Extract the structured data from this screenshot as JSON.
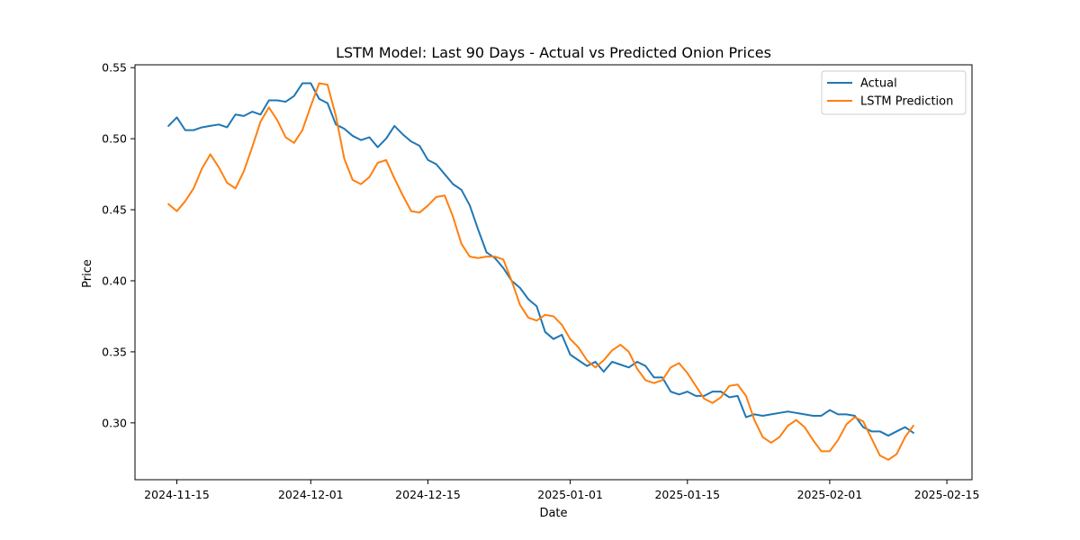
{
  "chart_data": {
    "type": "line",
    "title": "LSTM Model: Last 90 Days - Actual vs Predicted Onion Prices",
    "xlabel": "Date",
    "ylabel": "Price",
    "x_ticks": [
      "2024-11-15",
      "2024-12-01",
      "2024-12-15",
      "2025-01-01",
      "2025-01-15",
      "2025-02-01",
      "2025-02-15"
    ],
    "y_ticks": [
      "0.30",
      "0.35",
      "0.40",
      "0.45",
      "0.50",
      "0.55"
    ],
    "xlim": [
      "2024-11-10",
      "2025-02-18"
    ],
    "ylim": [
      0.26,
      0.552
    ],
    "grid": false,
    "legend_position": "upper right",
    "x": [
      "2024-11-14",
      "2024-11-15",
      "2024-11-16",
      "2024-11-17",
      "2024-11-18",
      "2024-11-19",
      "2024-11-20",
      "2024-11-21",
      "2024-11-22",
      "2024-11-23",
      "2024-11-24",
      "2024-11-25",
      "2024-11-26",
      "2024-11-27",
      "2024-11-28",
      "2024-11-29",
      "2024-11-30",
      "2024-12-01",
      "2024-12-02",
      "2024-12-03",
      "2024-12-04",
      "2024-12-05",
      "2024-12-06",
      "2024-12-07",
      "2024-12-08",
      "2024-12-09",
      "2024-12-10",
      "2024-12-11",
      "2024-12-12",
      "2024-12-13",
      "2024-12-14",
      "2024-12-15",
      "2024-12-16",
      "2024-12-17",
      "2024-12-18",
      "2024-12-19",
      "2024-12-20",
      "2024-12-21",
      "2024-12-22",
      "2024-12-23",
      "2024-12-24",
      "2024-12-25",
      "2024-12-26",
      "2024-12-27",
      "2024-12-28",
      "2024-12-29",
      "2024-12-30",
      "2024-12-31",
      "2025-01-01",
      "2025-01-02",
      "2025-01-03",
      "2025-01-04",
      "2025-01-05",
      "2025-01-06",
      "2025-01-07",
      "2025-01-08",
      "2025-01-09",
      "2025-01-10",
      "2025-01-11",
      "2025-01-12",
      "2025-01-13",
      "2025-01-14",
      "2025-01-15",
      "2025-01-16",
      "2025-01-17",
      "2025-01-18",
      "2025-01-19",
      "2025-01-20",
      "2025-01-21",
      "2025-01-22",
      "2025-01-23",
      "2025-01-24",
      "2025-01-25",
      "2025-01-26",
      "2025-01-27",
      "2025-01-28",
      "2025-01-29",
      "2025-01-30",
      "2025-01-31",
      "2025-02-01",
      "2025-02-02",
      "2025-02-03",
      "2025-02-04",
      "2025-02-05",
      "2025-02-06",
      "2025-02-07",
      "2025-02-08",
      "2025-02-09",
      "2025-02-10",
      "2025-02-11"
    ],
    "series": [
      {
        "name": "Actual",
        "color": "#1f77b4",
        "values": [
          0.509,
          0.515,
          0.506,
          0.506,
          0.508,
          0.509,
          0.51,
          0.508,
          0.517,
          0.516,
          0.519,
          0.517,
          0.527,
          0.527,
          0.526,
          0.53,
          0.539,
          0.539,
          0.528,
          0.525,
          0.51,
          0.507,
          0.502,
          0.499,
          0.501,
          0.494,
          0.5,
          0.509,
          0.503,
          0.498,
          0.495,
          0.485,
          0.482,
          0.475,
          0.468,
          0.464,
          0.453,
          0.436,
          0.42,
          0.416,
          0.409,
          0.4,
          0.395,
          0.387,
          0.382,
          0.364,
          0.359,
          0.362,
          0.348,
          0.344,
          0.34,
          0.343,
          0.336,
          0.343,
          0.341,
          0.339,
          0.343,
          0.34,
          0.332,
          0.332,
          0.322,
          0.32,
          0.322,
          0.319,
          0.319,
          0.322,
          0.322,
          0.318,
          0.319,
          0.304,
          0.306,
          0.305,
          0.306,
          0.307,
          0.308,
          0.307,
          0.306,
          0.305,
          0.305,
          0.309,
          0.306,
          0.306,
          0.305,
          0.297,
          0.294,
          0.294,
          0.291,
          0.294,
          0.297,
          0.293
        ]
      },
      {
        "name": "LSTM Prediction",
        "color": "#ff7f0e",
        "values": [
          0.454,
          0.449,
          0.456,
          0.465,
          0.479,
          0.489,
          0.48,
          0.469,
          0.465,
          0.477,
          0.494,
          0.512,
          0.522,
          0.513,
          0.501,
          0.497,
          0.506,
          0.523,
          0.539,
          0.538,
          0.516,
          0.486,
          0.471,
          0.468,
          0.473,
          0.483,
          0.485,
          0.472,
          0.46,
          0.449,
          0.448,
          0.453,
          0.459,
          0.46,
          0.445,
          0.426,
          0.417,
          0.416,
          0.417,
          0.417,
          0.415,
          0.4,
          0.383,
          0.374,
          0.372,
          0.376,
          0.375,
          0.369,
          0.359,
          0.353,
          0.344,
          0.339,
          0.344,
          0.351,
          0.355,
          0.35,
          0.338,
          0.33,
          0.328,
          0.33,
          0.339,
          0.342,
          0.335,
          0.326,
          0.317,
          0.314,
          0.318,
          0.326,
          0.327,
          0.319,
          0.302,
          0.29,
          0.286,
          0.29,
          0.298,
          0.302,
          0.297,
          0.288,
          0.28,
          0.28,
          0.288,
          0.299,
          0.304,
          0.301,
          0.289,
          0.277,
          0.274,
          0.278,
          0.29,
          0.298
        ]
      }
    ]
  }
}
